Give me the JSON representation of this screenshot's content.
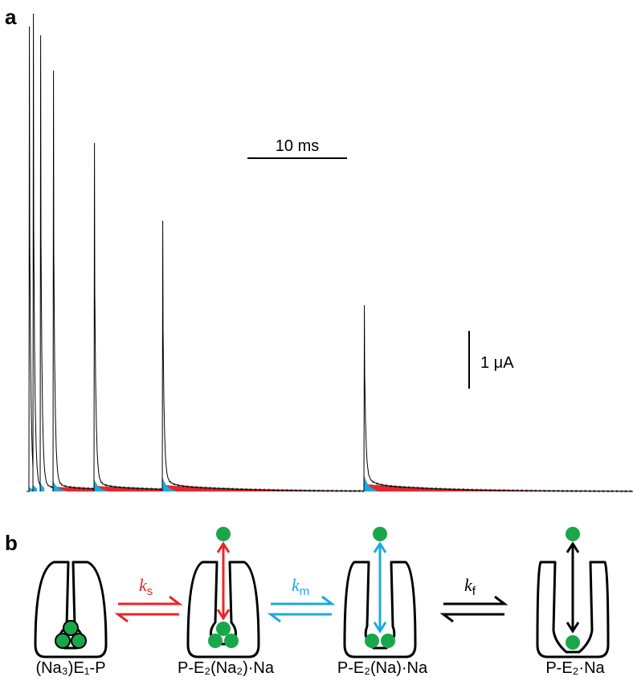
{
  "panel_a": {
    "label": "a",
    "time_scale": "10 ms",
    "current_scale": "1 μA"
  },
  "panel_b": {
    "label": "b",
    "states": [
      {
        "label": "(Na₃)E₁-P"
      },
      {
        "label": "P-E₂(Na₂)·Na"
      },
      {
        "label": "P-E₂(Na)·Na"
      },
      {
        "label": "P-E₂·Na"
      }
    ],
    "rates": [
      {
        "symbol": "k",
        "subscript": "s"
      },
      {
        "symbol": "k",
        "subscript": "m"
      },
      {
        "symbol": "k",
        "subscript": "f"
      }
    ]
  }
}
